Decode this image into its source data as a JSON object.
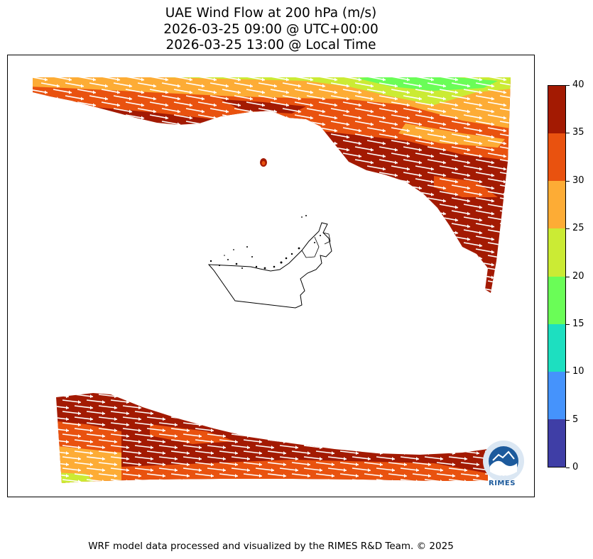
{
  "title": {
    "line1": "UAE Wind Flow at 200 hPa (m/s)",
    "line2": "2026-03-25 09:00 @ UTC+00:00",
    "line3": "2026-03-25 13:00 @ Local Time"
  },
  "colorbar": {
    "ticks": [
      "0",
      "5",
      "10",
      "15",
      "20",
      "25",
      "30",
      "35",
      "40"
    ],
    "colors": [
      "#3f3ea6",
      "#4593fc",
      "#1ddfc0",
      "#6afd57",
      "#cbeb34",
      "#fdac35",
      "#e9520f",
      "#a31a02"
    ]
  },
  "colors": {
    "band_low": "#cbeb34",
    "band_mid": "#fdac35",
    "band_high": "#e9520f",
    "band_max": "#a31a02",
    "arrow": "#ffffff"
  },
  "logo": {
    "text": "RIMES"
  },
  "footer": "WRF model data processed and visualized by the RIMES R&D Team. © 2025"
}
